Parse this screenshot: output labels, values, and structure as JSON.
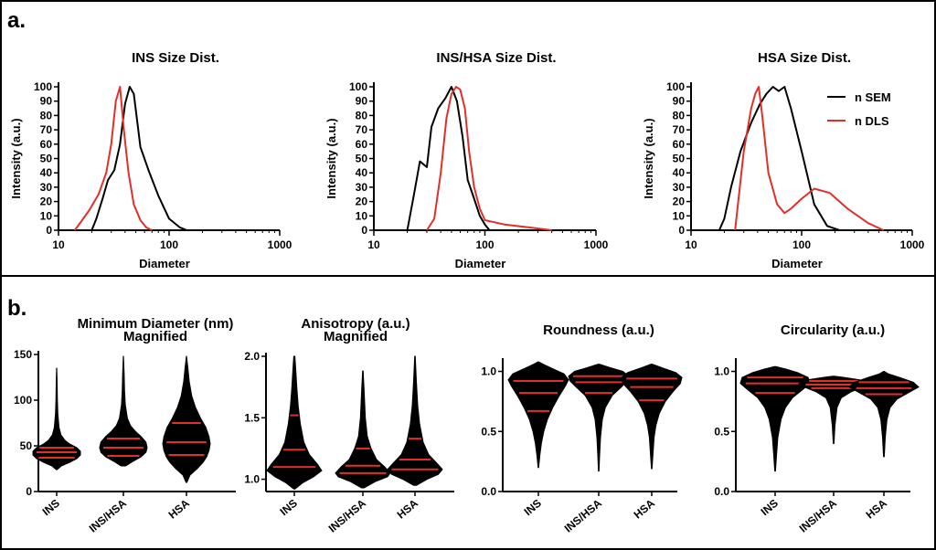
{
  "panels": {
    "a": "a.",
    "b": "b."
  },
  "colors": {
    "sem": "#000000",
    "dls": "#e0302c",
    "violin": "#000000",
    "quartile": "#e0302c"
  },
  "chart_data": [
    {
      "type": "line",
      "x_scale": "log",
      "title": "INS Size Dist.",
      "xlabel": "Diameter",
      "ylabel": "Intensity (a.u.)",
      "xlim": [
        10,
        1000
      ],
      "ylim": [
        0,
        100
      ],
      "xticks": [
        "10",
        "100",
        "1000"
      ],
      "yticks": [
        "0",
        "10",
        "20",
        "30",
        "40",
        "50",
        "60",
        "70",
        "80",
        "90",
        "100"
      ],
      "series": [
        {
          "name": "n SEM",
          "color": "#000000",
          "x": [
            20,
            22,
            25,
            28,
            32,
            36,
            40,
            44,
            48,
            55,
            65,
            80,
            100,
            125,
            145
          ],
          "y": [
            0,
            8,
            22,
            35,
            42,
            60,
            88,
            100,
            95,
            58,
            42,
            24,
            8,
            2,
            0
          ]
        },
        {
          "name": "n DLS",
          "color": "#e0302c",
          "x": [
            14,
            16,
            19,
            23,
            27,
            30,
            33,
            36,
            39,
            43,
            48,
            55,
            62,
            70
          ],
          "y": [
            0,
            6,
            14,
            25,
            40,
            60,
            90,
            100,
            70,
            40,
            18,
            7,
            2,
            0
          ]
        }
      ]
    },
    {
      "type": "line",
      "x_scale": "log",
      "title": "INS/HSA Size Dist.",
      "xlabel": "Diameter",
      "ylabel": "Intensity (a.u.)",
      "xlim": [
        10,
        1000
      ],
      "ylim": [
        0,
        100
      ],
      "xticks": [
        "10",
        "100",
        "1000"
      ],
      "yticks": [
        "0",
        "10",
        "20",
        "30",
        "40",
        "50",
        "60",
        "70",
        "80",
        "90",
        "100"
      ],
      "series": [
        {
          "name": "n SEM",
          "color": "#000000",
          "x": [
            20,
            23,
            26,
            30,
            33,
            38,
            44,
            50,
            56,
            63,
            70,
            80,
            90,
            100,
            110
          ],
          "y": [
            0,
            25,
            48,
            44,
            72,
            85,
            92,
            100,
            90,
            65,
            35,
            22,
            10,
            4,
            0
          ]
        },
        {
          "name": "n DLS",
          "color": "#e0302c",
          "x": [
            30,
            35,
            40,
            45,
            50,
            55,
            60,
            66,
            72,
            80,
            90,
            100,
            150,
            250,
            400
          ],
          "y": [
            0,
            8,
            40,
            78,
            95,
            100,
            98,
            85,
            55,
            30,
            15,
            7,
            4,
            2,
            0
          ]
        }
      ]
    },
    {
      "type": "line",
      "x_scale": "log",
      "title": "HSA Size Dist.",
      "xlabel": "Diameter",
      "ylabel": "Intensity (a.u.)",
      "xlim": [
        10,
        1000
      ],
      "ylim": [
        0,
        100
      ],
      "xticks": [
        "10",
        "100",
        "1000"
      ],
      "yticks": [
        "0",
        "10",
        "20",
        "30",
        "40",
        "50",
        "60",
        "70",
        "80",
        "90",
        "100"
      ],
      "legend": {
        "position": "top-right",
        "entries": [
          "n SEM",
          "n DLS"
        ]
      },
      "series": [
        {
          "name": "n SEM",
          "color": "#000000",
          "x": [
            18,
            20,
            23,
            28,
            35,
            42,
            48,
            55,
            62,
            70,
            80,
            100,
            130,
            170,
            220
          ],
          "y": [
            0,
            8,
            30,
            55,
            75,
            88,
            95,
            100,
            97,
            100,
            85,
            55,
            18,
            3,
            0
          ]
        },
        {
          "name": "n DLS",
          "color": "#e0302c",
          "x": [
            25,
            30,
            35,
            38,
            41,
            44,
            50,
            60,
            70,
            80,
            100,
            130,
            180,
            260,
            400,
            550
          ],
          "y": [
            0,
            55,
            85,
            95,
            100,
            80,
            40,
            18,
            12,
            15,
            22,
            29,
            26,
            15,
            5,
            0
          ]
        }
      ]
    },
    {
      "type": "violin",
      "title": "Minimum Diameter (nm)",
      "subtitle": "Magnified",
      "categories": [
        "INS",
        "INS/HSA",
        "HSA"
      ],
      "ylim": [
        0,
        150
      ],
      "yticks": [
        "0",
        "50",
        "100",
        "150"
      ],
      "violins": [
        {
          "category": "INS",
          "min": 24,
          "max": 135,
          "quartiles": [
            37,
            43,
            48
          ],
          "profile": [
            [
              24,
              0.02
            ],
            [
              28,
              0.2
            ],
            [
              32,
              0.55
            ],
            [
              36,
              0.85
            ],
            [
              40,
              1.0
            ],
            [
              44,
              1.0
            ],
            [
              48,
              0.85
            ],
            [
              52,
              0.55
            ],
            [
              56,
              0.35
            ],
            [
              62,
              0.18
            ],
            [
              70,
              0.1
            ],
            [
              85,
              0.05
            ],
            [
              100,
              0.03
            ],
            [
              120,
              0.02
            ],
            [
              135,
              0.005
            ]
          ]
        },
        {
          "category": "INS/HSA",
          "min": 28,
          "max": 148,
          "quartiles": [
            39,
            48,
            58
          ],
          "profile": [
            [
              28,
              0.1
            ],
            [
              33,
              0.4
            ],
            [
              38,
              0.75
            ],
            [
              43,
              0.95
            ],
            [
              48,
              1.0
            ],
            [
              54,
              0.95
            ],
            [
              60,
              0.75
            ],
            [
              66,
              0.5
            ],
            [
              72,
              0.3
            ],
            [
              80,
              0.17
            ],
            [
              95,
              0.08
            ],
            [
              110,
              0.05
            ],
            [
              130,
              0.03
            ],
            [
              148,
              0.005
            ]
          ]
        },
        {
          "category": "HSA",
          "min": 10,
          "max": 148,
          "quartiles": [
            40,
            54,
            75
          ],
          "profile": [
            [
              10,
              0.02
            ],
            [
              18,
              0.15
            ],
            [
              25,
              0.45
            ],
            [
              32,
              0.7
            ],
            [
              38,
              0.85
            ],
            [
              45,
              0.95
            ],
            [
              52,
              1.0
            ],
            [
              60,
              0.95
            ],
            [
              70,
              0.82
            ],
            [
              80,
              0.6
            ],
            [
              92,
              0.38
            ],
            [
              105,
              0.22
            ],
            [
              120,
              0.12
            ],
            [
              135,
              0.06
            ],
            [
              148,
              0.005
            ]
          ]
        }
      ]
    },
    {
      "type": "violin",
      "title": "Anisotropy (a.u.)",
      "subtitle": "Magnified",
      "categories": [
        "INS",
        "INS/HSA",
        "HSA"
      ],
      "ylim": [
        0.9,
        2.0
      ],
      "yticks": [
        "1.0",
        "1.5",
        "2.0"
      ],
      "violins": [
        {
          "category": "INS",
          "min": 0.92,
          "max": 2.0,
          "quartiles": [
            1.1,
            1.24,
            1.52
          ],
          "profile": [
            [
              0.92,
              0.02
            ],
            [
              0.97,
              0.3
            ],
            [
              1.02,
              0.7
            ],
            [
              1.07,
              1.0
            ],
            [
              1.12,
              0.85
            ],
            [
              1.2,
              0.55
            ],
            [
              1.3,
              0.35
            ],
            [
              1.45,
              0.22
            ],
            [
              1.6,
              0.14
            ],
            [
              1.75,
              0.09
            ],
            [
              1.9,
              0.05
            ],
            [
              2.0,
              0.02
            ]
          ]
        },
        {
          "category": "INS/HSA",
          "min": 0.93,
          "max": 1.88,
          "quartiles": [
            1.05,
            1.11,
            1.25
          ],
          "profile": [
            [
              0.93,
              0.05
            ],
            [
              0.98,
              0.45
            ],
            [
              1.02,
              0.9
            ],
            [
              1.05,
              1.0
            ],
            [
              1.1,
              0.8
            ],
            [
              1.16,
              0.5
            ],
            [
              1.25,
              0.3
            ],
            [
              1.35,
              0.16
            ],
            [
              1.5,
              0.09
            ],
            [
              1.7,
              0.05
            ],
            [
              1.88,
              0.01
            ]
          ]
        },
        {
          "category": "HSA",
          "min": 0.95,
          "max": 2.0,
          "quartiles": [
            1.08,
            1.16,
            1.33
          ],
          "profile": [
            [
              0.95,
              0.05
            ],
            [
              1.0,
              0.45
            ],
            [
              1.04,
              0.85
            ],
            [
              1.08,
              1.0
            ],
            [
              1.13,
              0.8
            ],
            [
              1.2,
              0.5
            ],
            [
              1.3,
              0.3
            ],
            [
              1.45,
              0.17
            ],
            [
              1.6,
              0.1
            ],
            [
              1.8,
              0.05
            ],
            [
              2.0,
              0.01
            ]
          ]
        }
      ]
    },
    {
      "type": "violin",
      "title": "Roundness (a.u.)",
      "categories": [
        "INS",
        "INS/HSA",
        "HSA"
      ],
      "ylim": [
        0,
        1.08
      ],
      "yticks": [
        "0.0",
        "0.5",
        "1.0"
      ],
      "violins": [
        {
          "category": "INS",
          "min": 0.2,
          "max": 1.08,
          "quartiles": [
            0.67,
            0.82,
            0.92
          ],
          "profile": [
            [
              0.2,
              0.01
            ],
            [
              0.3,
              0.05
            ],
            [
              0.4,
              0.1
            ],
            [
              0.5,
              0.18
            ],
            [
              0.6,
              0.3
            ],
            [
              0.7,
              0.48
            ],
            [
              0.8,
              0.7
            ],
            [
              0.88,
              0.9
            ],
            [
              0.93,
              1.0
            ],
            [
              0.98,
              0.85
            ],
            [
              1.02,
              0.5
            ],
            [
              1.06,
              0.15
            ],
            [
              1.08,
              0.01
            ]
          ]
        },
        {
          "category": "INS/HSA",
          "min": 0.17,
          "max": 1.06,
          "quartiles": [
            0.82,
            0.91,
            0.96
          ],
          "profile": [
            [
              0.17,
              0.01
            ],
            [
              0.3,
              0.03
            ],
            [
              0.45,
              0.06
            ],
            [
              0.6,
              0.12
            ],
            [
              0.7,
              0.22
            ],
            [
              0.8,
              0.45
            ],
            [
              0.87,
              0.75
            ],
            [
              0.92,
              0.95
            ],
            [
              0.96,
              1.0
            ],
            [
              1.0,
              0.8
            ],
            [
              1.03,
              0.4
            ],
            [
              1.06,
              0.02
            ]
          ]
        },
        {
          "category": "HSA",
          "min": 0.19,
          "max": 1.06,
          "quartiles": [
            0.76,
            0.87,
            0.94
          ],
          "profile": [
            [
              0.19,
              0.01
            ],
            [
              0.3,
              0.04
            ],
            [
              0.45,
              0.08
            ],
            [
              0.55,
              0.14
            ],
            [
              0.65,
              0.25
            ],
            [
              0.75,
              0.45
            ],
            [
              0.83,
              0.7
            ],
            [
              0.9,
              0.95
            ],
            [
              0.95,
              1.0
            ],
            [
              0.99,
              0.8
            ],
            [
              1.03,
              0.35
            ],
            [
              1.06,
              0.02
            ]
          ]
        }
      ]
    },
    {
      "type": "violin",
      "title": "Circularity (a.u.)",
      "categories": [
        "INS",
        "INS/HSA",
        "HSA"
      ],
      "ylim": [
        0,
        1.08
      ],
      "yticks": [
        "0.0",
        "0.5",
        "1.0"
      ],
      "violins": [
        {
          "category": "INS",
          "min": 0.17,
          "max": 1.04,
          "quartiles": [
            0.82,
            0.9,
            0.95
          ],
          "profile": [
            [
              0.17,
              0.01
            ],
            [
              0.3,
              0.04
            ],
            [
              0.45,
              0.08
            ],
            [
              0.6,
              0.17
            ],
            [
              0.7,
              0.3
            ],
            [
              0.78,
              0.5
            ],
            [
              0.85,
              0.8
            ],
            [
              0.9,
              1.0
            ],
            [
              0.95,
              0.95
            ],
            [
              0.99,
              0.65
            ],
            [
              1.02,
              0.3
            ],
            [
              1.04,
              0.02
            ]
          ]
        },
        {
          "category": "INS/HSA",
          "min": 0.4,
          "max": 0.96,
          "quartiles": [
            0.86,
            0.89,
            0.92
          ],
          "profile": [
            [
              0.4,
              0.01
            ],
            [
              0.55,
              0.04
            ],
            [
              0.7,
              0.1
            ],
            [
              0.78,
              0.22
            ],
            [
              0.83,
              0.5
            ],
            [
              0.87,
              0.85
            ],
            [
              0.9,
              1.0
            ],
            [
              0.93,
              0.75
            ],
            [
              0.95,
              0.3
            ],
            [
              0.96,
              0.02
            ]
          ]
        },
        {
          "category": "HSA",
          "min": 0.29,
          "max": 1.0,
          "quartiles": [
            0.81,
            0.86,
            0.91
          ],
          "profile": [
            [
              0.29,
              0.01
            ],
            [
              0.45,
              0.04
            ],
            [
              0.6,
              0.09
            ],
            [
              0.7,
              0.18
            ],
            [
              0.77,
              0.38
            ],
            [
              0.83,
              0.75
            ],
            [
              0.87,
              1.0
            ],
            [
              0.91,
              0.85
            ],
            [
              0.95,
              0.45
            ],
            [
              0.98,
              0.12
            ],
            [
              1.0,
              0.01
            ]
          ]
        }
      ]
    }
  ]
}
